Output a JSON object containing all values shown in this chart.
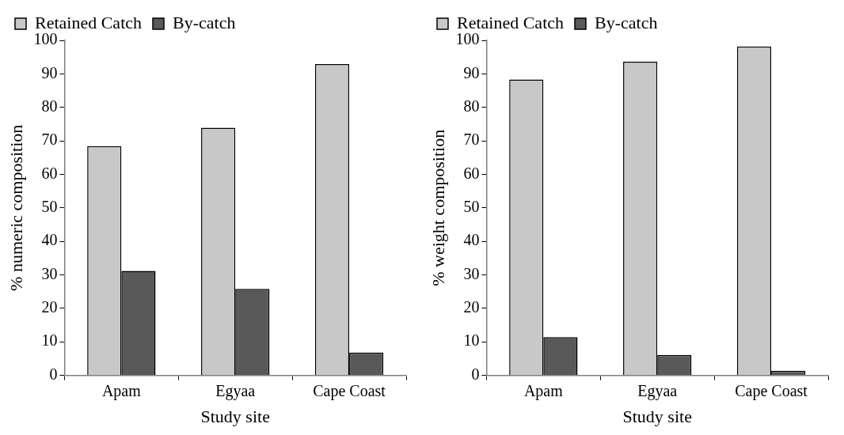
{
  "chart_data": [
    {
      "type": "bar",
      "xlabel": "Study site",
      "ylabel": "% numeric composition",
      "categories": [
        "Apam",
        "Egyaa",
        "Cape Coast"
      ],
      "series": [
        {
          "name": "Retained Catch",
          "color": "#c8c8c8",
          "values": [
            68.4,
            73.9,
            92.9
          ]
        },
        {
          "name": "By-catch",
          "color": "#595959",
          "values": [
            31.2,
            25.8,
            6.8
          ]
        }
      ],
      "ylim": [
        0,
        100
      ],
      "yticks": [
        0,
        10,
        20,
        30,
        40,
        50,
        60,
        70,
        80,
        90,
        100
      ],
      "grid": false,
      "legend": "top"
    },
    {
      "type": "bar",
      "xlabel": "Study site",
      "ylabel": "% weight composition",
      "categories": [
        "Apam",
        "Egyaa",
        "Cape Coast"
      ],
      "series": [
        {
          "name": "Retained Catch",
          "color": "#c8c8c8",
          "values": [
            88.3,
            93.6,
            98.2
          ]
        },
        {
          "name": "By-catch",
          "color": "#595959",
          "values": [
            11.4,
            6.1,
            1.4
          ]
        }
      ],
      "ylim": [
        0,
        100
      ],
      "yticks": [
        0,
        10,
        20,
        30,
        40,
        50,
        60,
        70,
        80,
        90,
        100
      ],
      "grid": false,
      "legend": "top"
    }
  ]
}
